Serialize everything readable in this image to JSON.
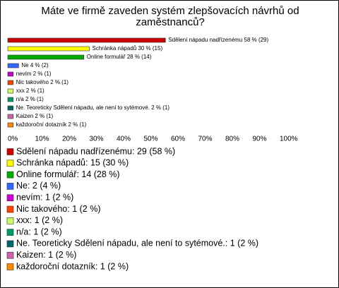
{
  "chart_data": {
    "type": "bar",
    "orientation": "horizontal",
    "title": "Máte ve firmě zaveden systém zlepšovacích návrhů od zaměstnanců?",
    "values": [
      58,
      30,
      28,
      4,
      2,
      2,
      2,
      2,
      2,
      2,
      2
    ],
    "value_labels": [
      "Sdělení nápadu nadřízenému 58 % (29)",
      "Schránka nápadů 30 % (15)",
      "Online formulář 28 % (14)",
      "Ne 4 % (2)",
      "nevím 2 % (1)",
      "Nic takového 2 % (1)",
      "xxx 2 % (1)",
      "n/a 2 % (1)",
      "Ne. Teoreticky Sdělení nápadu, ale není to sytémové. 2 % (1)",
      "Kaizen 2 % (1)",
      "každoroční dotazník 2 % (1)"
    ],
    "legend": [
      "Sdělení nápadu nadřízenému: 29 (58 %)",
      "Schránka nápadů: 15 (30 %)",
      "Online formulář: 14 (28 %)",
      "Ne: 2 (4 %)",
      "nevím: 1 (2 %)",
      "Nic takového: 1 (2 %)",
      "xxx: 1 (2 %)",
      "n/a: 1 (2 %)",
      "Ne. Teoreticky Sdělení nápadu, ale není to sytémové.: 1 (2 %)",
      "Kaizen: 1 (2 %)",
      "každoroční dotazník: 1 (2 %)"
    ],
    "colors": [
      "#cc0000",
      "#ffff00",
      "#00aa00",
      "#3366ff",
      "#cc00cc",
      "#ff4400",
      "#ccff66",
      "#009966",
      "#006666",
      "#cc66aa",
      "#ff8800"
    ],
    "xlim": [
      0,
      100
    ],
    "xticks": [
      {
        "value": 0,
        "label": "0%"
      },
      {
        "value": 10,
        "label": "10%"
      },
      {
        "value": 20,
        "label": "20%"
      },
      {
        "value": 30,
        "label": "30%"
      },
      {
        "value": 40,
        "label": "40%"
      },
      {
        "value": 50,
        "label": "50%"
      },
      {
        "value": 60,
        "label": "60%"
      },
      {
        "value": 70,
        "label": "70%"
      },
      {
        "value": 80,
        "label": "80%"
      },
      {
        "value": 90,
        "label": "90%"
      },
      {
        "value": 100,
        "label": "100%"
      }
    ]
  }
}
